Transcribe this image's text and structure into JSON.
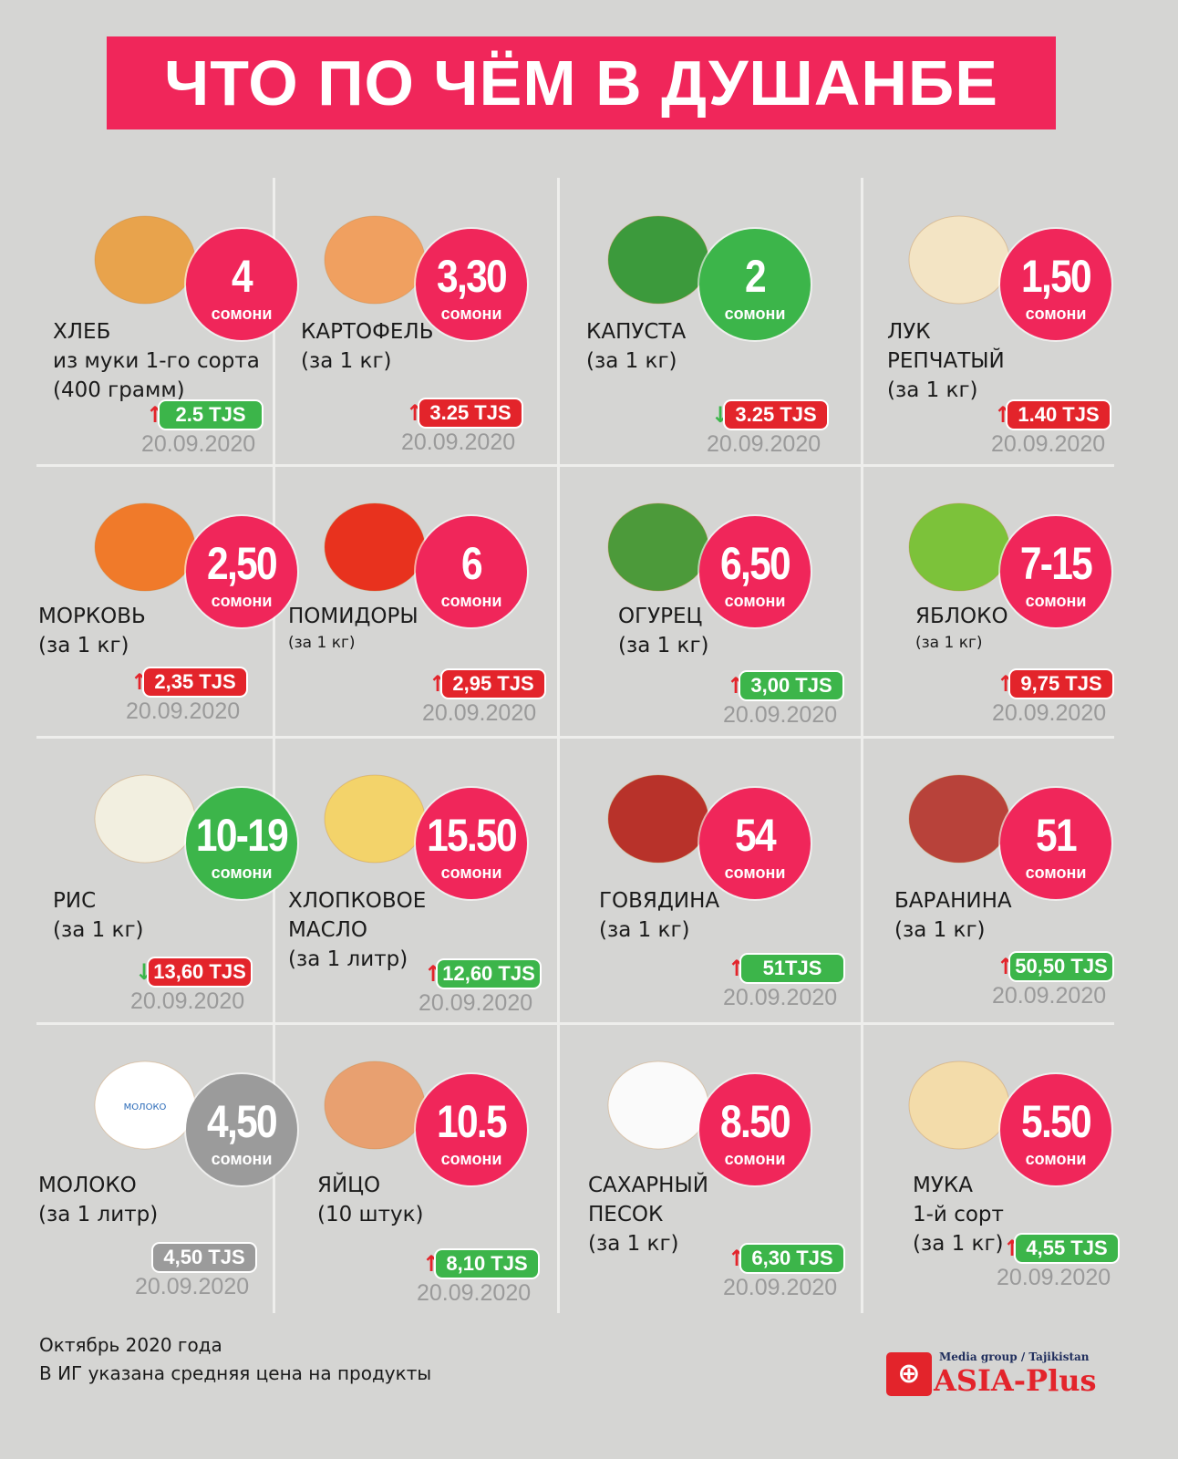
{
  "title": "ЧТО ПО ЧЁМ В ДУШАНБЕ",
  "currency_label": "сомони",
  "colors": {
    "pink": "#f0265a",
    "green": "#3cb54a",
    "red": "#e3242b",
    "gray": "#9b9b9b"
  },
  "items": [
    {
      "icon": "bread-icon",
      "name": [
        "ХЛЕБ",
        "из муки 1-го сорта",
        "(400 грамм)"
      ],
      "price": "4",
      "circle": "pink",
      "arrow": "up",
      "prev": "2.5 TJS",
      "badge": "green",
      "date": "20.09.2020"
    },
    {
      "icon": "potato-icon",
      "name": [
        "КАРТОФЕЛЬ",
        "(за 1 кг)"
      ],
      "price": "3,30",
      "circle": "pink",
      "arrow": "up",
      "prev": "3.25 TJS",
      "badge": "red",
      "date": "20.09.2020"
    },
    {
      "icon": "cabbage-icon",
      "name": [
        "КАПУСТА",
        "(за 1 кг)"
      ],
      "price": "2",
      "circle": "green",
      "arrow": "down",
      "prev": "3.25 TJS",
      "badge": "red",
      "date": "20.09.2020"
    },
    {
      "icon": "onion-icon",
      "name": [
        "ЛУК",
        "РЕПЧАТЫЙ",
        "(за 1 кг)"
      ],
      "price": "1,50",
      "circle": "pink",
      "arrow": "up",
      "prev": "1.40 TJS",
      "badge": "red",
      "date": "20.09.2020"
    },
    {
      "icon": "carrot-icon",
      "name": [
        "МОРКОВЬ",
        "(за 1 кг)"
      ],
      "price": "2,50",
      "circle": "pink",
      "arrow": "up",
      "prev": "2,35 TJS",
      "badge": "red",
      "date": "20.09.2020"
    },
    {
      "icon": "tomato-icon",
      "name": [
        "ПОМИДОРЫ",
        "(за 1 кг)"
      ],
      "small_last": true,
      "price": "6",
      "circle": "pink",
      "arrow": "up",
      "prev": "2,95 TJS",
      "badge": "red",
      "date": "20.09.2020"
    },
    {
      "icon": "cucumber-icon",
      "name": [
        "ОГУРЕЦ",
        "(за 1 кг)"
      ],
      "price": "6,50",
      "circle": "pink",
      "arrow": "up",
      "prev": "3,00 TJS",
      "badge": "green",
      "date": "20.09.2020"
    },
    {
      "icon": "apple-icon",
      "name": [
        "ЯБЛОКО",
        "(за 1 кг)"
      ],
      "small_last": true,
      "price": "7-15",
      "circle": "pink",
      "arrow": "up",
      "prev": "9,75 TJS",
      "badge": "red",
      "date": "20.09.2020"
    },
    {
      "icon": "rice-icon",
      "name": [
        "РИС",
        "(за 1 кг)"
      ],
      "price": "10-19",
      "circle": "green",
      "arrow": "down",
      "prev": "13,60 TJS",
      "badge": "red",
      "date": "20.09.2020"
    },
    {
      "icon": "oil-bottle-icon",
      "name": [
        "ХЛОПКОВОЕ",
        "МАСЛО",
        "(за 1 литр)"
      ],
      "price": "15.50",
      "circle": "pink",
      "arrow": "up",
      "prev": "12,60 TJS",
      "badge": "green",
      "date": "20.09.2020"
    },
    {
      "icon": "beef-icon",
      "name": [
        "ГОВЯДИНА",
        "(за 1 кг)"
      ],
      "price": "54",
      "circle": "pink",
      "arrow": "up",
      "prev": "51TJS",
      "badge": "green",
      "date": "20.09.2020"
    },
    {
      "icon": "mutton-icon",
      "name": [
        "БАРАНИНА",
        "(за 1 кг)"
      ],
      "price": "51",
      "circle": "pink",
      "arrow": "up",
      "prev": "50,50 TJS",
      "badge": "green",
      "date": "20.09.2020"
    },
    {
      "icon": "milk-bottle-icon",
      "icon_label": "МОЛОКО",
      "name": [
        "МОЛОКО",
        "(за 1 литр)"
      ],
      "price": "4,50",
      "circle": "gray",
      "arrow": "none",
      "prev": "4,50 TJS",
      "badge": "gray",
      "date": "20.09.2020"
    },
    {
      "icon": "eggs-icon",
      "name": [
        "ЯЙЦО",
        "(10 штук)"
      ],
      "price": "10.5",
      "circle": "pink",
      "arrow": "up",
      "prev": "8,10 TJS",
      "badge": "green",
      "date": "20.09.2020"
    },
    {
      "icon": "sugar-icon",
      "name": [
        "САХАРНЫЙ",
        "ПЕСОК",
        "(за 1 кг)"
      ],
      "price": "8.50",
      "circle": "pink",
      "arrow": "up",
      "prev": "6,30 TJS",
      "badge": "green",
      "date": "20.09.2020"
    },
    {
      "icon": "flour-icon",
      "name": [
        "МУКА",
        "1-й сорт",
        "(за 1 кг)"
      ],
      "price": "5.50",
      "circle": "pink",
      "arrow": "up",
      "prev": "4,55 TJS",
      "badge": "green",
      "date": "20.09.2020"
    }
  ],
  "footer": {
    "line1": "Октябрь 2020 года",
    "line2": "В ИГ указана средняя цена на продукты"
  },
  "logo": {
    "tagline": "Media group / Tajikistan",
    "name": "ASIA-Plus"
  }
}
